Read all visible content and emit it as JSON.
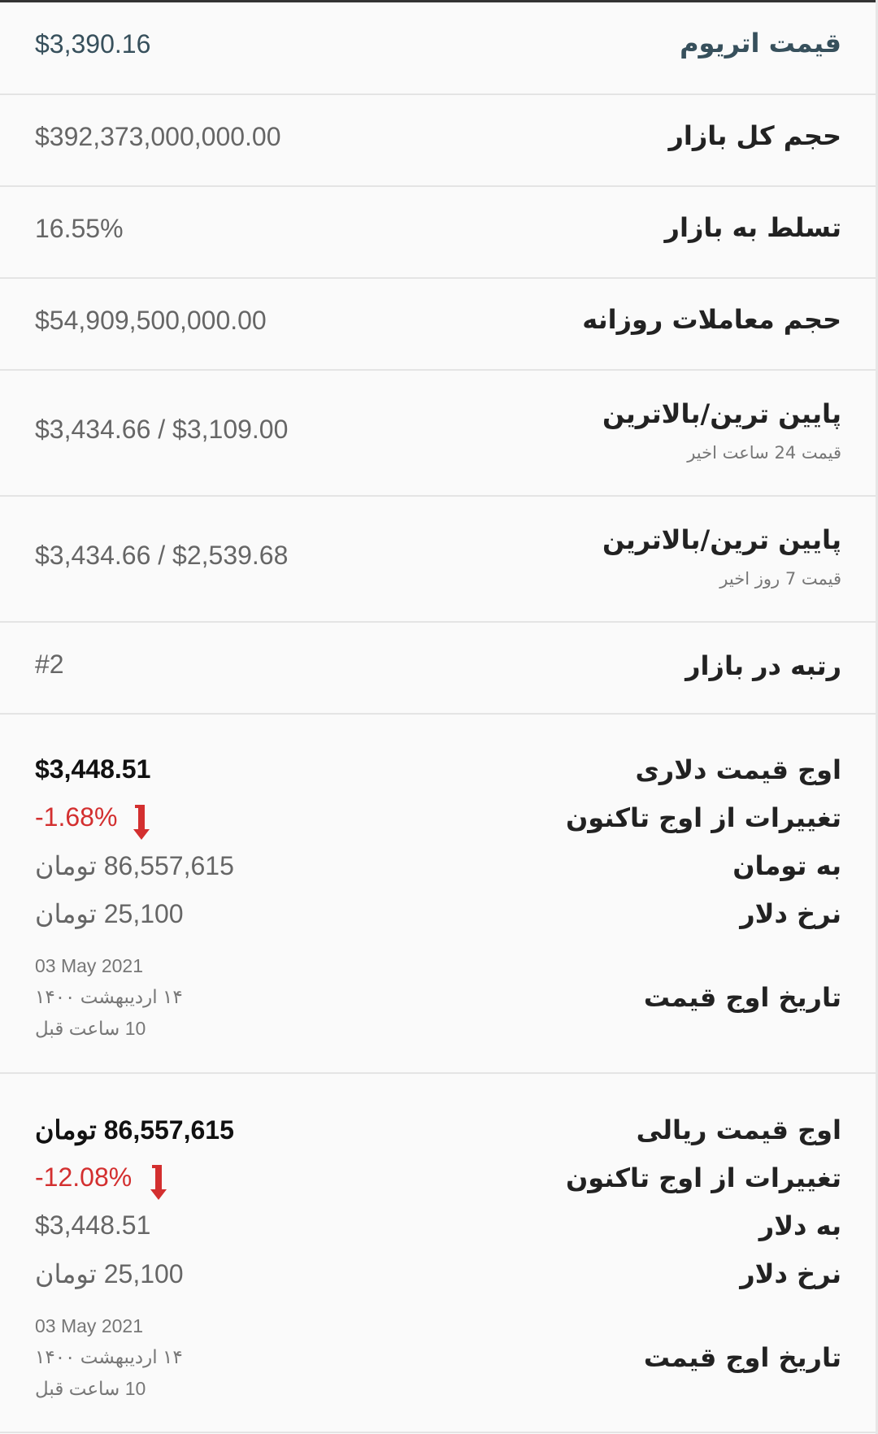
{
  "rows": [
    {
      "label": "قیمت اتریوم",
      "value": "$3,390.16"
    },
    {
      "label": "حجم کل بازار",
      "value": "$392,373,000,000.00"
    },
    {
      "label": "تسلط به بازار",
      "value": "16.55%"
    },
    {
      "label": "حجم معاملات روزانه",
      "value": "$54,909,500,000.00"
    },
    {
      "label": "پایین ترین/بالاترین",
      "sublabel": "قیمت 24 ساعت اخیر",
      "value": "$3,434.66 / $3,109.00"
    },
    {
      "label": "پایین ترین/بالاترین",
      "sublabel": "قیمت 7 روز اخیر",
      "value": "$3,434.66 / $2,539.68"
    },
    {
      "label": "رتبه در بازار",
      "value": "#2"
    }
  ],
  "ath_usd": {
    "label": "اوج قیمت دلاری",
    "value": "$3,448.51",
    "change_label": "تغییرات از اوج تاکنون",
    "change": "-1.68%",
    "convert_label": "به تومان",
    "convert_value": "86,557,615 تومان",
    "rate_label": "نرخ دلار",
    "rate_value": "25,100 تومان",
    "date_label": "تاریخ اوج قیمت",
    "date_en": "03 May 2021",
    "date_fa": "۱۴ اردیبهشت ۱۴۰۰",
    "ago": "10 ساعت قبل"
  },
  "ath_irr": {
    "label": "اوج قیمت ریالی",
    "value": "86,557,615 تومان",
    "change_label": "تغییرات از اوج تاکنون",
    "change": "-12.08%",
    "convert_label": "به دلار",
    "convert_value": "$3,448.51",
    "rate_label": "نرخ دلار",
    "rate_value": "25,100 تومان",
    "date_label": "تاریخ اوج قیمت",
    "date_en": "03 May 2021",
    "date_fa": "۱۴ اردیبهشت ۱۴۰۰",
    "ago": "10 ساعت قبل"
  },
  "colors": {
    "title": "#37505c",
    "negative": "#d32f2f"
  },
  "icons": {
    "change": "arrow-down-icon"
  }
}
